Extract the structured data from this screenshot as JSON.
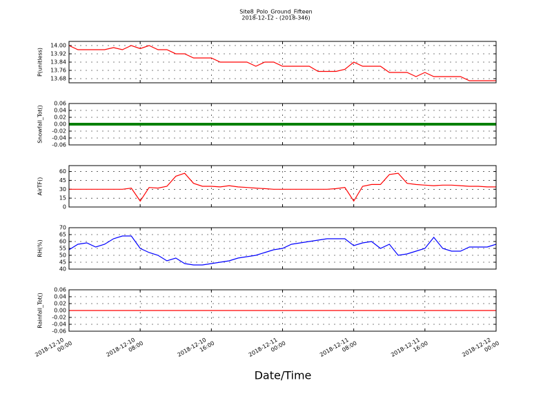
{
  "chart_data": {
    "type": "line",
    "title": "Site8_Polo_Ground_Fifteen",
    "subtitle": "2018-12-12 - (2018-346)",
    "xlabel": "Date/Time",
    "grid": true,
    "x": [
      "2018-12-10 00:00",
      "2018-12-10 01:00",
      "2018-12-10 02:00",
      "2018-12-10 03:00",
      "2018-12-10 04:00",
      "2018-12-10 05:00",
      "2018-12-10 06:00",
      "2018-12-10 07:00",
      "2018-12-10 08:00",
      "2018-12-10 09:00",
      "2018-12-10 10:00",
      "2018-12-10 11:00",
      "2018-12-10 12:00",
      "2018-12-10 13:00",
      "2018-12-10 14:00",
      "2018-12-10 15:00",
      "2018-12-10 16:00",
      "2018-12-10 17:00",
      "2018-12-10 18:00",
      "2018-12-10 19:00",
      "2018-12-10 20:00",
      "2018-12-10 21:00",
      "2018-12-10 22:00",
      "2018-12-10 23:00",
      "2018-12-11 00:00",
      "2018-12-11 01:00",
      "2018-12-11 02:00",
      "2018-12-11 03:00",
      "2018-12-11 04:00",
      "2018-12-11 05:00",
      "2018-12-11 06:00",
      "2018-12-11 07:00",
      "2018-12-11 08:00",
      "2018-12-11 09:00",
      "2018-12-11 10:00",
      "2018-12-11 11:00",
      "2018-12-11 12:00",
      "2018-12-11 13:00",
      "2018-12-11 14:00",
      "2018-12-11 15:00",
      "2018-12-11 16:00",
      "2018-12-11 17:00",
      "2018-12-11 18:00",
      "2018-12-11 19:00",
      "2018-12-11 20:00",
      "2018-12-11 21:00",
      "2018-12-11 22:00",
      "2018-12-11 23:00",
      "2018-12-12 00:00"
    ],
    "xlim": [
      "2018-12-10 00:00",
      "2018-12-12 00:00"
    ],
    "xticks": [
      "2018-12-10 00:00",
      "2018-12-10 08:00",
      "2018-12-10 16:00",
      "2018-12-11 00:00",
      "2018-12-11 08:00",
      "2018-12-11 16:00",
      "2018-12-12 00:00"
    ],
    "panels": [
      {
        "ylabel": "P(unitless)",
        "ylim": [
          13.64,
          14.04
        ],
        "yticks": [
          13.68,
          13.76,
          13.84,
          13.92,
          {
            "value": 14,
            "label": "14.00"
          }
        ],
        "series": [
          {
            "color": "#ff0000",
            "values": [
              14.0,
              13.96,
              13.96,
              13.96,
              13.96,
              13.98,
              13.96,
              14.0,
              13.97,
              14.0,
              13.96,
              13.96,
              13.92,
              13.92,
              13.88,
              13.88,
              13.88,
              13.84,
              13.84,
              13.84,
              13.84,
              13.8,
              13.84,
              13.84,
              13.8,
              13.8,
              13.8,
              13.8,
              13.75,
              13.75,
              13.75,
              13.77,
              13.84,
              13.8,
              13.8,
              13.8,
              13.74,
              13.74,
              13.74,
              13.7,
              13.74,
              13.7,
              13.7,
              13.7,
              13.7,
              13.66,
              13.66,
              13.66,
              13.66
            ]
          }
        ]
      },
      {
        "ylabel": "Snowfall_Tot()",
        "ylim": [
          -0.06,
          0.06
        ],
        "yticks": [
          -0.06,
          -0.04,
          -0.02,
          {
            "value": 0,
            "label": "0.00"
          },
          0.02,
          0.04,
          0.06
        ],
        "series": [
          {
            "color": "#008000",
            "values": [
              0,
              0,
              0,
              0,
              0,
              0,
              0,
              0,
              0,
              0,
              0,
              0,
              0,
              0,
              0,
              0,
              0,
              0,
              0,
              0,
              0,
              0,
              0,
              0,
              0,
              0,
              0,
              0,
              0,
              0,
              0,
              0,
              0,
              0,
              0,
              0,
              0,
              0,
              0,
              0,
              0,
              0,
              0,
              0,
              0,
              0,
              0,
              0,
              0
            ]
          }
        ]
      },
      {
        "ylabel": "AirTF()",
        "ylim": [
          0,
          70
        ],
        "yticks": [
          0,
          15,
          30,
          45,
          60
        ],
        "series": [
          {
            "color": "#ff0000",
            "values": [
              30,
              30,
              30,
              30,
              30,
              30,
              30,
              32,
              10,
              33,
              32,
              35,
              52,
              57,
              40,
              35,
              35,
              34,
              36,
              34,
              33,
              32,
              31,
              30,
              30,
              30,
              30,
              30,
              30,
              30,
              31,
              33,
              10,
              35,
              38,
              38,
              55,
              57,
              40,
              38,
              37,
              36,
              37,
              37,
              36,
              35,
              35,
              34,
              34
            ]
          }
        ]
      },
      {
        "ylabel": "RH(%)",
        "ylim": [
          40,
          70
        ],
        "yticks": [
          40,
          45,
          50,
          55,
          60,
          65,
          70
        ],
        "series": [
          {
            "color": "#0000ff",
            "values": [
              54,
              58,
              59,
              56,
              58,
              62,
              64,
              64,
              55,
              52,
              50,
              46,
              48,
              44,
              43,
              43,
              44,
              45,
              46,
              48,
              49,
              50,
              52,
              54,
              55,
              58,
              59,
              60,
              61,
              62,
              62,
              62,
              57,
              59,
              60,
              55,
              58,
              50,
              51,
              53,
              55,
              63,
              55,
              53,
              53,
              56,
              56,
              56,
              58
            ]
          }
        ]
      },
      {
        "ylabel": "Rainfall_Tot()",
        "ylim": [
          -0.06,
          0.06
        ],
        "yticks": [
          -0.06,
          -0.04,
          -0.02,
          {
            "value": 0,
            "label": "0.00"
          },
          0.02,
          0.04,
          0.06
        ],
        "series": [
          {
            "color": "#ff0000",
            "values": [
              0,
              0,
              0,
              0,
              0,
              0,
              0,
              0,
              0,
              0,
              0,
              0,
              0,
              0,
              0,
              0,
              0,
              0,
              0,
              0,
              0,
              0,
              0,
              0,
              0,
              0,
              0,
              0,
              0,
              0,
              0,
              0,
              0,
              0,
              0,
              0,
              0,
              0,
              0,
              0,
              0,
              0,
              0,
              0,
              0,
              0,
              0,
              0,
              0
            ]
          }
        ]
      }
    ]
  }
}
